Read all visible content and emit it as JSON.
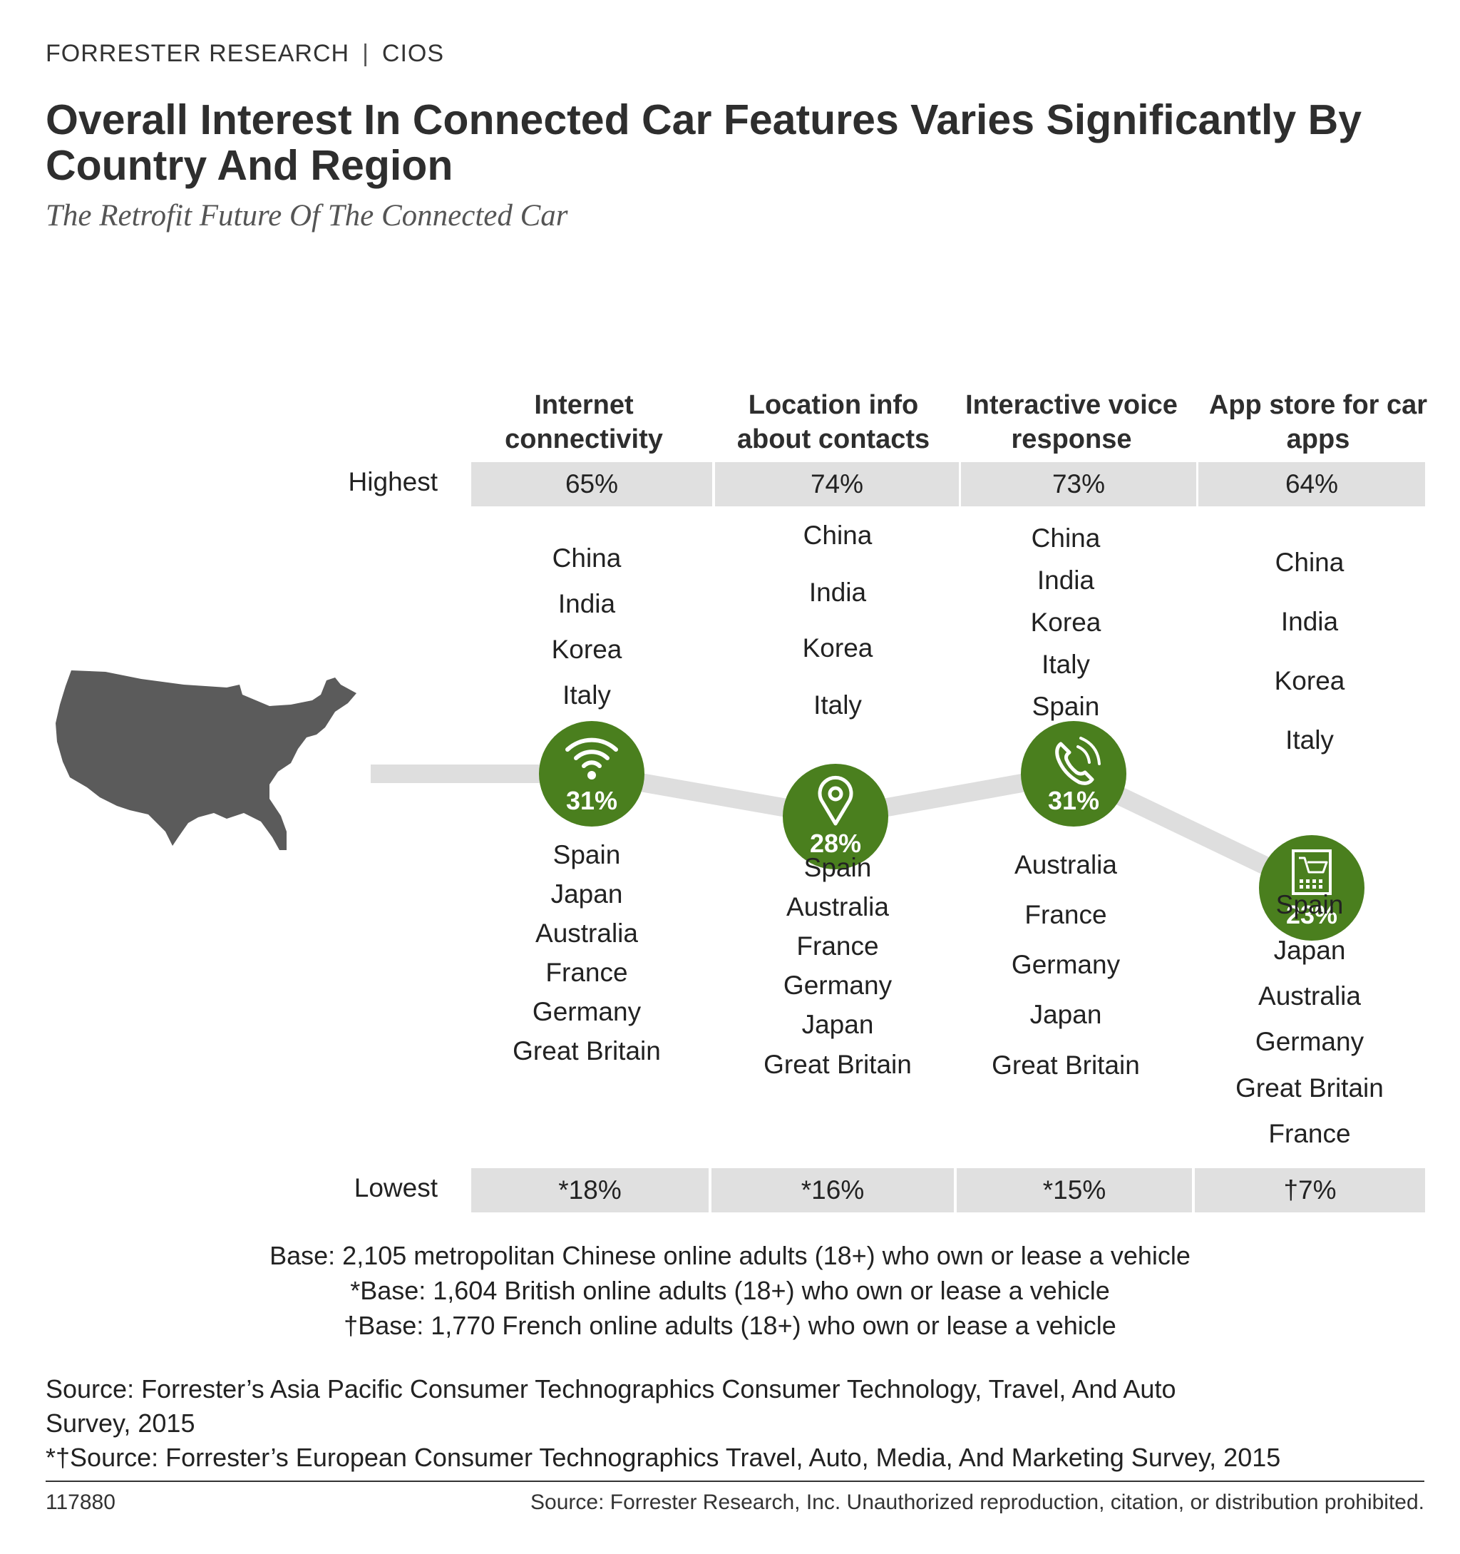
{
  "header": {
    "brand": "FORRESTER RESEARCH",
    "separator": "|",
    "section": "CIOS",
    "title": "Overall Interest In Connected Car Features Varies Significantly By Country And Region",
    "subtitle": "The Retrofit Future Of The Connected Car"
  },
  "rows": {
    "highest_label": "Highest",
    "lowest_label": "Lowest"
  },
  "columns": [
    {
      "header": "Internet connectivity",
      "icon": "wifi-icon",
      "highest": "65%",
      "us_value": "31%",
      "lowest": "*18%",
      "above": [
        "China",
        "India",
        "Korea",
        "Italy"
      ],
      "below": [
        "Spain",
        "Japan",
        "Australia",
        "France",
        "Germany",
        "Great Britain"
      ]
    },
    {
      "header": "Location info about contacts",
      "icon": "location-pin-icon",
      "highest": "74%",
      "us_value": "28%",
      "lowest": "*16%",
      "above": [
        "China",
        "India",
        "Korea",
        "Italy"
      ],
      "below": [
        "Spain",
        "Australia",
        "France",
        "Germany",
        "Japan",
        "Great Britain"
      ]
    },
    {
      "header": "Interactive voice response",
      "icon": "phone-icon",
      "highest": "73%",
      "us_value": "31%",
      "lowest": "*15%",
      "above": [
        "China",
        "India",
        "Korea",
        "Italy",
        "Spain"
      ],
      "below": [
        "Australia",
        "France",
        "Germany",
        "Japan",
        "Great Britain"
      ]
    },
    {
      "header": "App store for car apps",
      "icon": "shopping-cart-icon",
      "highest": "64%",
      "us_value": "23%",
      "lowest": "†7%",
      "above": [
        "China",
        "India",
        "Korea",
        "Italy"
      ],
      "below": [
        "Spain",
        "Japan",
        "Australia",
        "Germany",
        "Great Britain",
        "France"
      ]
    }
  ],
  "chart_data": {
    "type": "line",
    "title": "Overall Interest In Connected Car Features Varies Significantly By Country And Region",
    "categories": [
      "Internet connectivity",
      "Location info about contacts",
      "Interactive voice response",
      "App store for car apps"
    ],
    "series": [
      {
        "name": "",
        "values": [
          31,
          28,
          31,
          23
        ]
      }
    ],
    "highest": [
      65,
      74,
      73,
      64
    ],
    "lowest": [
      18,
      16,
      15,
      7
    ]
  },
  "footnotes": [
    "Base: 2,105 metropolitan Chinese online adults (18+) who own or lease a vehicle",
    "*Base: 1,604 British online adults (18+) who own or lease a vehicle",
    "†Base: 1,770 French online adults (18+) who own or lease a vehicle"
  ],
  "sources": [
    "Source: Forrester’s Asia Pacific Consumer Technographics Consumer Technology, Travel, And Auto Survey, 2015",
    "*†Source: Forrester’s European Consumer Technographics Travel, Auto, Media, And Marketing Survey, 2015"
  ],
  "footer": {
    "doc_id": "117880",
    "rights": "Source: Forrester Research, Inc. Unauthorized reproduction, citation, or distribution prohibited."
  },
  "colors": {
    "circle": "#4a7f1e",
    "band": "#dedede",
    "map": "#5b5b5b",
    "bar": "#e0e0e0"
  }
}
